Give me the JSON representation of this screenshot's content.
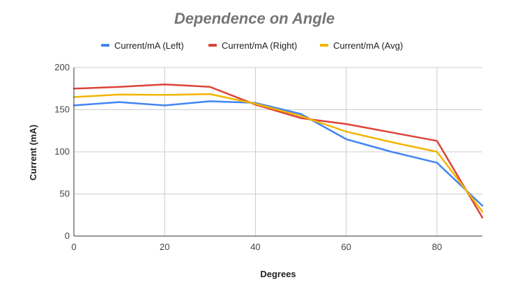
{
  "chart_data": {
    "type": "line",
    "title": "Dependence on Angle",
    "xlabel": "Degrees",
    "ylabel": "Current (mA)",
    "xlim": [
      0,
      90
    ],
    "ylim": [
      0,
      200
    ],
    "x_ticks": [
      0,
      20,
      40,
      60,
      80
    ],
    "y_ticks": [
      0,
      50,
      100,
      150,
      200
    ],
    "grid": true,
    "legend_position": "top",
    "x": [
      0,
      10,
      20,
      30,
      40,
      50,
      60,
      70,
      80,
      90
    ],
    "series": [
      {
        "name": "Current/mA (Left)",
        "color": "#4285f4",
        "values": [
          155,
          159,
          155,
          160,
          158,
          145,
          115,
          100,
          87,
          36
        ]
      },
      {
        "name": "Current/mA (Right)",
        "color": "#db4437",
        "values": [
          175,
          177,
          180,
          177,
          156,
          140,
          133,
          123,
          113,
          22
        ]
      },
      {
        "name": "Current/mA (Avg)",
        "color": "#f4b400",
        "values": [
          165,
          168,
          167.5,
          168.5,
          157,
          142.5,
          124,
          111.5,
          100,
          29
        ]
      }
    ]
  }
}
